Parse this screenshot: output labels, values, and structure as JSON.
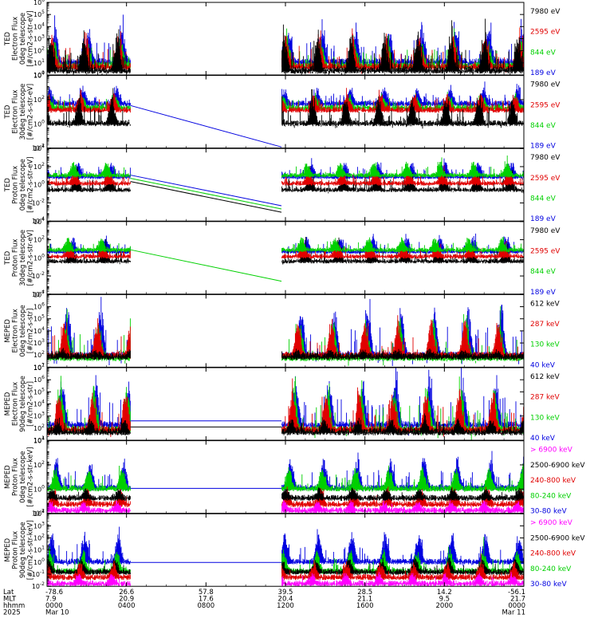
{
  "colors": {
    "black": "#000000",
    "red": "#e00000",
    "green": "#00d000",
    "blue": "#0000e0",
    "magenta": "#ff00ff"
  },
  "footer": {
    "row_labels": [
      "Lat",
      "MLT",
      "hhmm",
      "2025"
    ],
    "columns": [
      {
        "lat": "-78.6",
        "mlt": "7.9",
        "hhmm": "0000",
        "date": "Mar 10"
      },
      {
        "lat": "26.6",
        "mlt": "20.9",
        "hhmm": "0400",
        "date": ""
      },
      {
        "lat": "57.8",
        "mlt": "17.6",
        "hhmm": "0800",
        "date": ""
      },
      {
        "lat": "39.5",
        "mlt": "20.4",
        "hhmm": "1200",
        "date": ""
      },
      {
        "lat": "28.5",
        "mlt": "21.1",
        "hhmm": "1600",
        "date": ""
      },
      {
        "lat": "14.2",
        "mlt": "9.5",
        "hhmm": "2000",
        "date": ""
      },
      {
        "lat": "-56.1",
        "mlt": "21.7",
        "hhmm": "0000",
        "date": "Mar 11"
      }
    ]
  },
  "chart_data": [
    {
      "type": "line",
      "instrument": "TED",
      "quantity": "Electron Flux",
      "telescope": "0deg telescope",
      "ylabel": [
        "TED",
        "Electron Flux",
        "0deg telescope",
        "[#/cm2-s-str-eV]"
      ],
      "yscale": "log",
      "ylim_exp": [
        0,
        6
      ],
      "ytick_labels": [
        "10^0",
        "10^1",
        "10^2",
        "10^3",
        "10^4",
        "10^5",
        "10^6"
      ],
      "legend": [
        {
          "label": "7980 eV",
          "color": "#000000"
        },
        {
          "label": "2595 eV",
          "color": "#e00000"
        },
        {
          "label": "844 eV",
          "color": "#00d000"
        },
        {
          "label": "189 eV",
          "color": "#0000e0"
        }
      ],
      "series": [
        {
          "name": "189 eV",
          "color": "#0000e0",
          "base": 1.2,
          "amp": 2.8,
          "spike": 0.18
        },
        {
          "name": "844 eV",
          "color": "#00d000",
          "base": 0.9,
          "amp": 2.2,
          "spike": 0.15
        },
        {
          "name": "2595 eV",
          "color": "#e00000",
          "base": 0.8,
          "amp": 2.6,
          "spike": 0.16
        },
        {
          "name": "7980 eV",
          "color": "#000000",
          "base": 0.5,
          "amp": 2.9,
          "spike": 0.2
        }
      ],
      "gap": {
        "start": 4.2,
        "end": 11.8
      },
      "gap_lines": [],
      "gap_mode": "blank"
    },
    {
      "type": "line",
      "instrument": "TED",
      "quantity": "Electron Flux",
      "telescope": "30deg telescope",
      "ylabel": [
        "TED",
        "Electron Flux",
        "30deg telescope",
        "[#/cm2-s-str-eV]"
      ],
      "yscale": "log",
      "ylim_exp": [
        -2,
        5
      ],
      "ytick_labels": [
        "10^-2",
        "10^0",
        "10^2",
        "10^4"
      ],
      "legend": [
        {
          "label": "7980 eV",
          "color": "#000000"
        },
        {
          "label": "2595 eV",
          "color": "#e00000"
        },
        {
          "label": "844 eV",
          "color": "#00d000"
        },
        {
          "label": "189 eV",
          "color": "#0000e0"
        }
      ],
      "series": [
        {
          "name": "189 eV",
          "color": "#0000e0",
          "base": 2.4,
          "amp": 1.4,
          "spike": 0.18
        },
        {
          "name": "844 eV",
          "color": "#00d000",
          "base": 2.0,
          "amp": 1.2,
          "spike": 0.12
        },
        {
          "name": "2595 eV",
          "color": "#e00000",
          "base": 1.8,
          "amp": 1.5,
          "spike": 0.15
        },
        {
          "name": "7980 eV",
          "color": "#000000",
          "base": 0.5,
          "amp": 2.4,
          "spike": 0.2
        }
      ],
      "gap": {
        "start": 4.2,
        "end": 11.8
      },
      "gap_lines": [
        {
          "color": "#0000e0",
          "y0": 2.1,
          "y1": -1.9
        }
      ],
      "gap_mode": "line"
    },
    {
      "type": "line",
      "instrument": "TED",
      "quantity": "Proton Flux",
      "telescope": "0deg telescope",
      "ylabel": [
        "TED",
        "Proton Flux",
        "0deg telescope",
        "[#/cm2-s-str-eV]"
      ],
      "yscale": "log",
      "ylim_exp": [
        -4,
        5
      ],
      "ytick_labels": [
        "10^-4",
        "10^-2",
        "10^0",
        "10^2",
        "10^4"
      ],
      "legend": [
        {
          "label": "7980 eV",
          "color": "#000000"
        },
        {
          "label": "2595 eV",
          "color": "#e00000"
        },
        {
          "label": "844 eV",
          "color": "#00d000"
        },
        {
          "label": "189 eV",
          "color": "#0000e0"
        }
      ],
      "series": [
        {
          "name": "189 eV",
          "color": "#0000e0",
          "base": 1.6,
          "amp": 1.8,
          "spike": 0.12
        },
        {
          "name": "7980 eV",
          "color": "#000000",
          "base": 0.0,
          "amp": 2.2,
          "spike": 0.18
        },
        {
          "name": "2595 eV",
          "color": "#e00000",
          "base": 0.8,
          "amp": 1.6,
          "spike": 0.12
        },
        {
          "name": "844 eV",
          "color": "#00d000",
          "base": 1.8,
          "amp": 1.6,
          "spike": 0.1
        }
      ],
      "gap": {
        "start": 4.2,
        "end": 11.8
      },
      "gap_lines": [
        {
          "color": "#0000e0",
          "y0": 1.7,
          "y1": -2.1
        },
        {
          "color": "#00d000",
          "y0": 1.3,
          "y1": -2.5
        },
        {
          "color": "#000000",
          "y0": 0.9,
          "y1": -2.9
        }
      ],
      "gap_mode": "line"
    },
    {
      "type": "line",
      "instrument": "TED",
      "quantity": "Proton Flux",
      "telescope": "30deg telescope",
      "ylabel": [
        "TED",
        "Proton Flux",
        "30deg telescope",
        "[#/cm2-s-str-eV]"
      ],
      "yscale": "log",
      "ylim_exp": [
        -4,
        5
      ],
      "ytick_labels": [
        "10^-4",
        "10^-2",
        "10^0",
        "10^2",
        "10^4"
      ],
      "legend": [
        {
          "label": "7980 eV",
          "color": "#000000"
        },
        {
          "label": "2595 eV",
          "color": "#e00000"
        },
        {
          "label": "844 eV",
          "color": "#00d000"
        },
        {
          "label": "189 eV",
          "color": "#0000e0"
        }
      ],
      "series": [
        {
          "name": "189 eV",
          "color": "#0000e0",
          "base": 1.4,
          "amp": 1.8,
          "spike": 0.12
        },
        {
          "name": "7980 eV",
          "color": "#000000",
          "base": 0.2,
          "amp": 2.0,
          "spike": 0.16
        },
        {
          "name": "2595 eV",
          "color": "#e00000",
          "base": 0.8,
          "amp": 1.6,
          "spike": 0.12
        },
        {
          "name": "844 eV",
          "color": "#00d000",
          "base": 1.6,
          "amp": 1.5,
          "spike": 0.1
        }
      ],
      "gap": {
        "start": 4.2,
        "end": 11.8
      },
      "gap_lines": [
        {
          "color": "#00d000",
          "y0": 1.5,
          "y1": -2.4
        }
      ],
      "gap_mode": "line"
    },
    {
      "type": "line",
      "instrument": "MEPED",
      "quantity": "Electron Flux",
      "telescope": "0deg telescope",
      "ylabel": [
        "MEPED",
        "Electron Flux",
        "0deg telescope",
        "[#/cm2-s-str]"
      ],
      "yscale": "log",
      "ylim_exp": [
        1,
        7
      ],
      "ytick_labels": [
        "10^1",
        "10^2",
        "10^3",
        "10^4",
        "10^5",
        "10^6",
        "10^7"
      ],
      "legend": [
        {
          "label": "612 keV",
          "color": "#000000"
        },
        {
          "label": "287 keV",
          "color": "#e00000"
        },
        {
          "label": "130 keV",
          "color": "#00d000"
        },
        {
          "label": "40 keV",
          "color": "#0000e0"
        }
      ],
      "series": [
        {
          "name": "40 keV",
          "color": "#0000e0",
          "base": 2.1,
          "amp": 4.2,
          "spike": 0.12
        },
        {
          "name": "130 keV",
          "color": "#00d000",
          "base": 1.9,
          "amp": 3.2,
          "spike": 0.1
        },
        {
          "name": "287 keV",
          "color": "#e00000",
          "base": 2.1,
          "amp": 3.0,
          "spike": 0.08
        },
        {
          "name": "612 keV",
          "color": "#000000",
          "base": 2.0,
          "amp": 0.4,
          "spike": 0.3
        }
      ],
      "gap": {
        "start": 4.2,
        "end": 11.8
      },
      "gap_lines": [],
      "gap_mode": "blank"
    },
    {
      "type": "line",
      "instrument": "MEPED",
      "quantity": "Electron Flux",
      "telescope": "90deg telescope",
      "ylabel": [
        "MEPED",
        "Electron Flux",
        "90deg telescope",
        "[#/cm2-s-str]"
      ],
      "yscale": "log",
      "ylim_exp": [
        1,
        7
      ],
      "ytick_labels": [
        "10^1",
        "10^2",
        "10^3",
        "10^4",
        "10^5",
        "10^6",
        "10^7"
      ],
      "legend": [
        {
          "label": "612 keV",
          "color": "#000000"
        },
        {
          "label": "287 keV",
          "color": "#e00000"
        },
        {
          "label": "130 keV",
          "color": "#00d000"
        },
        {
          "label": "40 keV",
          "color": "#0000e0"
        }
      ],
      "series": [
        {
          "name": "40 keV",
          "color": "#0000e0",
          "base": 2.4,
          "amp": 4.0,
          "spike": 0.14
        },
        {
          "name": "130 keV",
          "color": "#00d000",
          "base": 2.0,
          "amp": 3.6,
          "spike": 0.12
        },
        {
          "name": "287 keV",
          "color": "#e00000",
          "base": 2.0,
          "amp": 3.2,
          "spike": 0.1
        },
        {
          "name": "612 keV",
          "color": "#000000",
          "base": 1.8,
          "amp": 1.0,
          "spike": 0.25
        }
      ],
      "gap": {
        "start": 4.2,
        "end": 11.8
      },
      "gap_lines": [
        {
          "color": "#0000e0",
          "y0": 2.6,
          "y1": 2.6
        },
        {
          "color": "#000000",
          "y0": 2.1,
          "y1": 2.1
        }
      ],
      "gap_mode": "line"
    },
    {
      "type": "line",
      "instrument": "MEPED",
      "quantity": "Proton Flux",
      "telescope": "0deg telescope",
      "ylabel": [
        "MEPED",
        "Proton Flux",
        "0deg telescope",
        "[#/cm2-s-str-keV]"
      ],
      "yscale": "log",
      "ylim_exp": [
        -2,
        5
      ],
      "ytick_labels": [
        "10^-2",
        "10^0",
        "10^2",
        "10^4"
      ],
      "legend": [
        {
          "label": "> 6900 keV",
          "color": "#ff00ff"
        },
        {
          "label": "2500-6900 keV",
          "color": "#000000"
        },
        {
          "label": "240-800 keV",
          "color": "#e00000"
        },
        {
          "label": "80-240 keV",
          "color": "#00d000"
        },
        {
          "label": "30-80 keV",
          "color": "#0000e0"
        }
      ],
      "series": [
        {
          "name": "30-80 keV",
          "color": "#0000e0",
          "base": 0.6,
          "amp": 2.8,
          "spike": 0.12
        },
        {
          "name": "80-240 keV",
          "color": "#00d000",
          "base": 0.5,
          "amp": 2.0,
          "spike": 0.1
        },
        {
          "name": "240-800 keV",
          "color": "#e00000",
          "base": -1.0,
          "amp": 1.5,
          "spike": 0.06
        },
        {
          "name": "2500-6900 keV",
          "color": "#000000",
          "base": -0.4,
          "amp": 0.8,
          "spike": 0.05
        },
        {
          "name": "> 6900 keV",
          "color": "#ff00ff",
          "base": -1.6,
          "amp": 0.8,
          "spike": 0.04
        }
      ],
      "gap": {
        "start": 4.2,
        "end": 11.8
      },
      "gap_lines": [
        {
          "color": "#0000e0",
          "y0": 0.4,
          "y1": 0.4
        }
      ],
      "gap_mode": "line"
    },
    {
      "type": "line",
      "instrument": "MEPED",
      "quantity": "Proton Flux",
      "telescope": "90deg telescope",
      "ylabel": [
        "MEPED",
        "Proton Flux",
        "90deg telescope",
        "[#/cm2-s-str-keV]"
      ],
      "yscale": "log",
      "ylim_exp": [
        -2,
        5
      ],
      "ytick_labels": [
        "10^-2",
        "10^-1",
        "10^0",
        "10^1",
        "10^2",
        "10^3",
        "10^4"
      ],
      "legend": [
        {
          "label": "> 6900 keV",
          "color": "#ff00ff"
        },
        {
          "label": "2500-6900 keV",
          "color": "#000000"
        },
        {
          "label": "240-800 keV",
          "color": "#e00000"
        },
        {
          "label": "80-240 keV",
          "color": "#00d000"
        },
        {
          "label": "30-80 keV",
          "color": "#0000e0"
        }
      ],
      "series": [
        {
          "name": "30-80 keV",
          "color": "#0000e0",
          "base": 0.5,
          "amp": 2.8,
          "spike": 0.12
        },
        {
          "name": "80-240 keV",
          "color": "#00d000",
          "base": -0.4,
          "amp": 2.0,
          "spike": 0.1
        },
        {
          "name": "2500-6900 keV",
          "color": "#000000",
          "base": -0.5,
          "amp": 1.2,
          "spike": 0.05
        },
        {
          "name": "240-800 keV",
          "color": "#e00000",
          "base": -1.0,
          "amp": 1.4,
          "spike": 0.05
        },
        {
          "name": "> 6900 keV",
          "color": "#ff00ff",
          "base": -1.6,
          "amp": 0.9,
          "spike": 0.05
        }
      ],
      "gap": {
        "start": 4.2,
        "end": 11.8
      },
      "gap_lines": [
        {
          "color": "#0000e0",
          "y0": 0.3,
          "y1": 0.3
        }
      ],
      "gap_mode": "line"
    }
  ]
}
